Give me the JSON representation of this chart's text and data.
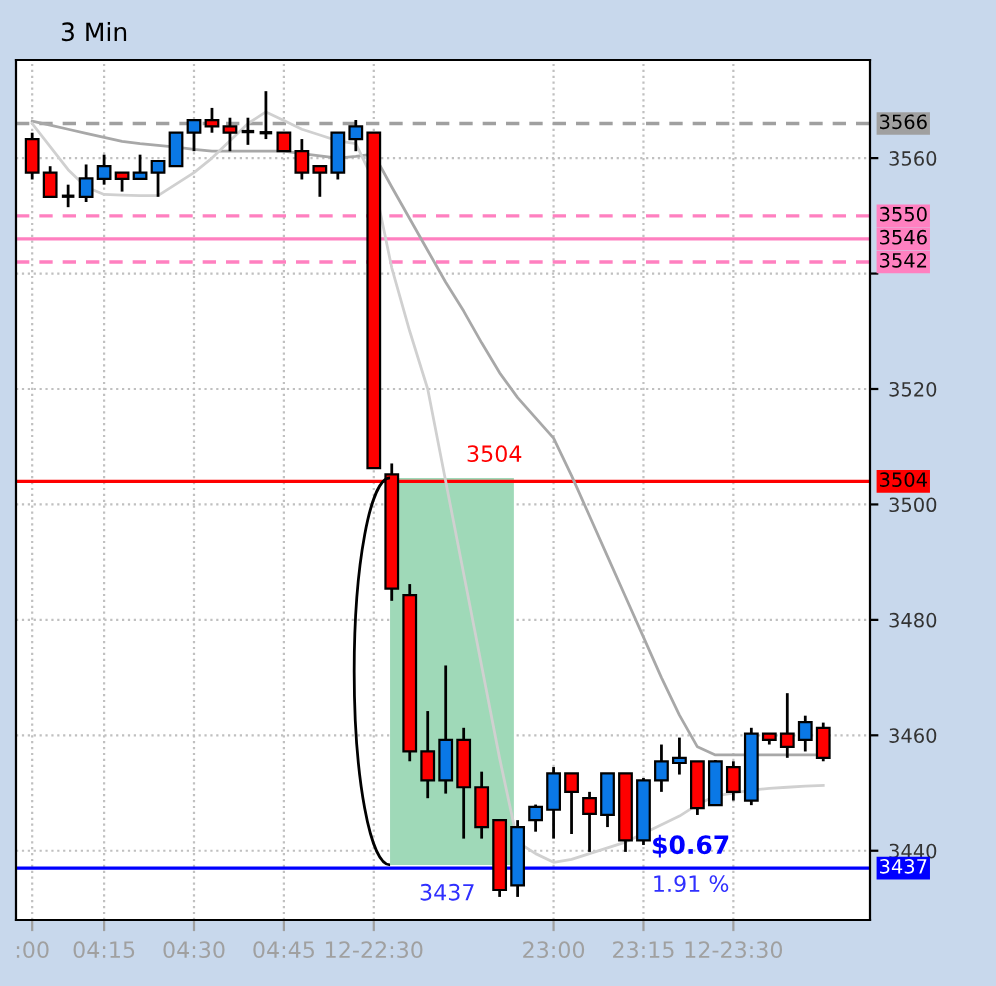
{
  "chart_data": {
    "type": "candlestick",
    "title": "3 Min",
    "categories": [
      ":00",
      null,
      null,
      null,
      "04:15",
      null,
      null,
      null,
      null,
      "04:30",
      null,
      null,
      null,
      null,
      "04:45",
      null,
      null,
      null,
      null,
      "12-22:30",
      null,
      null,
      null,
      null,
      null,
      null,
      null,
      null,
      null,
      "23:00",
      null,
      null,
      null,
      null,
      "23:15",
      null,
      null,
      null,
      null,
      "12-23:30",
      null,
      null,
      null,
      null,
      null
    ],
    "ohlc": [
      [
        3563.3,
        3564.4,
        3556.3,
        3557.5
      ],
      [
        3557.5,
        3558.6,
        3553.3,
        3553.3
      ],
      [
        3553.4,
        3555.4,
        3551.5,
        3553.4
      ],
      [
        3553.3,
        3558.9,
        3552.4,
        3556.5
      ],
      [
        3556.4,
        3560.6,
        3555.4,
        3558.6
      ],
      [
        3557.5,
        3557.5,
        3554.2,
        3556.4
      ],
      [
        3556.4,
        3560.6,
        3556.4,
        3557.5
      ],
      [
        3557.5,
        3559.5,
        3553.3,
        3559.5
      ],
      [
        3558.6,
        3564.4,
        3558.6,
        3564.4
      ],
      [
        3564.4,
        3566.6,
        3561.2,
        3566.6
      ],
      [
        3566.6,
        3568.7,
        3564.4,
        3565.5
      ],
      [
        3565.5,
        3567.0,
        3561.2,
        3564.4
      ],
      [
        3564.6,
        3567.0,
        3562.3,
        3564.6
      ],
      [
        3564.4,
        3571.6,
        3563.3,
        3564.4
      ],
      [
        3564.4,
        3564.4,
        3561.2,
        3561.2
      ],
      [
        3561.2,
        3563.3,
        3556.3,
        3557.5
      ],
      [
        3558.6,
        3558.6,
        3553.3,
        3557.5
      ],
      [
        3557.5,
        3564.4,
        3556.3,
        3564.4
      ],
      [
        3563.3,
        3566.6,
        3561.2,
        3565.5
      ],
      [
        3564.4,
        3564.4,
        3506.3,
        3506.3
      ],
      [
        3505.2,
        3507.1,
        3483.3,
        3485.4
      ],
      [
        3484.3,
        3486.2,
        3455.5,
        3457.2
      ],
      [
        3457.2,
        3464.2,
        3449.1,
        3452.2
      ],
      [
        3452.2,
        3472.1,
        3449.9,
        3459.2
      ],
      [
        3459.2,
        3461.3,
        3442.1,
        3451.0
      ],
      [
        3451.0,
        3453.7,
        3442.1,
        3444.1
      ],
      [
        3445.3,
        3445.3,
        3432.0,
        3433.2
      ],
      [
        3434.0,
        3445.3,
        3432.0,
        3444.1
      ],
      [
        3445.3,
        3448.0,
        3443.3,
        3447.6
      ],
      [
        3447.1,
        3454.5,
        3442.1,
        3453.4
      ],
      [
        3453.4,
        3453.4,
        3442.9,
        3450.2
      ],
      [
        3449.1,
        3450.2,
        3439.8,
        3446.4
      ],
      [
        3446.2,
        3453.4,
        3444.1,
        3453.4
      ],
      [
        3453.4,
        3453.4,
        3439.8,
        3441.8
      ],
      [
        3441.8,
        3452.6,
        3441.0,
        3452.2
      ],
      [
        3452.2,
        3458.4,
        3450.2,
        3455.5
      ],
      [
        3455.2,
        3459.6,
        3453.2,
        3456.1
      ],
      [
        3455.5,
        3455.5,
        3446.2,
        3447.4
      ],
      [
        3447.9,
        3455.7,
        3447.9,
        3455.5
      ],
      [
        3454.5,
        3455.5,
        3448.7,
        3450.2
      ],
      [
        3448.7,
        3461.3,
        3447.9,
        3460.3
      ],
      [
        3460.3,
        3460.3,
        3458.4,
        3459.2
      ],
      [
        3460.3,
        3467.3,
        3456.1,
        3458.0
      ],
      [
        3459.2,
        3463.4,
        3457.2,
        3462.3
      ],
      [
        3461.3,
        3462.2,
        3455.5,
        3456.1
      ]
    ],
    "colors": [
      "#ff0000",
      "#ff0000",
      "#000000",
      "#0a78e6",
      "#0a78e6",
      "#ff0000",
      "#0a78e6",
      "#0a78e6",
      "#0a78e6",
      "#0a78e6",
      "#ff0000",
      "#ff0000",
      "#000000",
      "#000000",
      "#ff0000",
      "#ff0000",
      "#ff0000",
      "#0a78e6",
      "#0a78e6",
      "#ff0000",
      "#ff0000",
      "#ff0000",
      "#ff0000",
      "#0a78e6",
      "#ff0000",
      "#ff0000",
      "#ff0000",
      "#0a78e6",
      "#0a78e6",
      "#0a78e6",
      "#ff0000",
      "#ff0000",
      "#0a78e6",
      "#ff0000",
      "#0a78e6",
      "#0a78e6",
      "#0a78e6",
      "#ff0000",
      "#0a78e6",
      "#ff0000",
      "#0a78e6",
      "#ff0000",
      "#ff0000",
      "#0a78e6",
      "#ff0000"
    ],
    "series": [
      {
        "type": "line",
        "color": "#a8a8a8",
        "values": [
          3566.4,
          3565.7,
          3565,
          3564.3,
          3563.6,
          3562.9,
          3562.5,
          3562.2,
          3561.9,
          3561.5,
          3561.2,
          3561.2,
          3561.2,
          3561.2,
          3561.2,
          3560.8,
          3560.4,
          3560,
          3560.3,
          3560.7,
          3555,
          3549.5,
          3544,
          3538.5,
          3533.5,
          3528,
          3522.8,
          3518.5,
          3515,
          3511.5,
          3505,
          3498,
          3491,
          3484,
          3477,
          3470,
          3463.5,
          3458,
          3456.6,
          3456.6,
          3456.6,
          3456.6,
          3456.6,
          3456.6,
          3456.6
        ]
      },
      {
        "type": "line",
        "color": "#d0d0d0",
        "values": [
          3566,
          3562,
          3558,
          3555,
          3553.7,
          3553.6,
          3553.5,
          3553.5,
          3555.5,
          3557.5,
          3560,
          3563,
          3566,
          3568,
          3566.5,
          3565,
          3564,
          3563,
          3562.5,
          3556,
          3541,
          3530,
          3520,
          3504,
          3488,
          3472,
          3456,
          3441.5,
          3439.5,
          3438,
          3438.5,
          3439.5,
          3440.5,
          3441.5,
          3443,
          3444.5,
          3446,
          3448,
          3449.5,
          3450,
          3450.5,
          3450.8,
          3451,
          3451.2,
          3451.3
        ]
      }
    ],
    "ylim": [
      3428,
      3577
    ],
    "yticks": [
      3440,
      3460,
      3480,
      3500,
      3520,
      {
        "value": 3540,
        "label": null
      },
      3560
    ],
    "grid": true,
    "ref_lines": [
      {
        "axis": "y",
        "value": 3566,
        "label": "3566",
        "color": "#a0a0a0",
        "line_style": "dashed"
      },
      {
        "axis": "y",
        "value": 3550,
        "label": "3550",
        "color": "#ff80c0",
        "line_style": "dashed"
      },
      {
        "axis": "y",
        "value": 3546,
        "label": "3546",
        "color": "#ff80c0",
        "line_style": "solid"
      },
      {
        "axis": "y",
        "value": 3542,
        "label": "3542",
        "color": "#ff80c0",
        "line_style": "dashed"
      },
      {
        "axis": "y",
        "value": 3504,
        "label": "3504",
        "color": "#ff0000",
        "line_style": "solid"
      },
      {
        "axis": "y",
        "value": 3437,
        "label": "3437",
        "color": "#0000ff",
        "line_style": "solid"
      }
    ],
    "annotations": [
      "3504",
      "3437",
      "$0.67",
      "1.91 %"
    ]
  }
}
